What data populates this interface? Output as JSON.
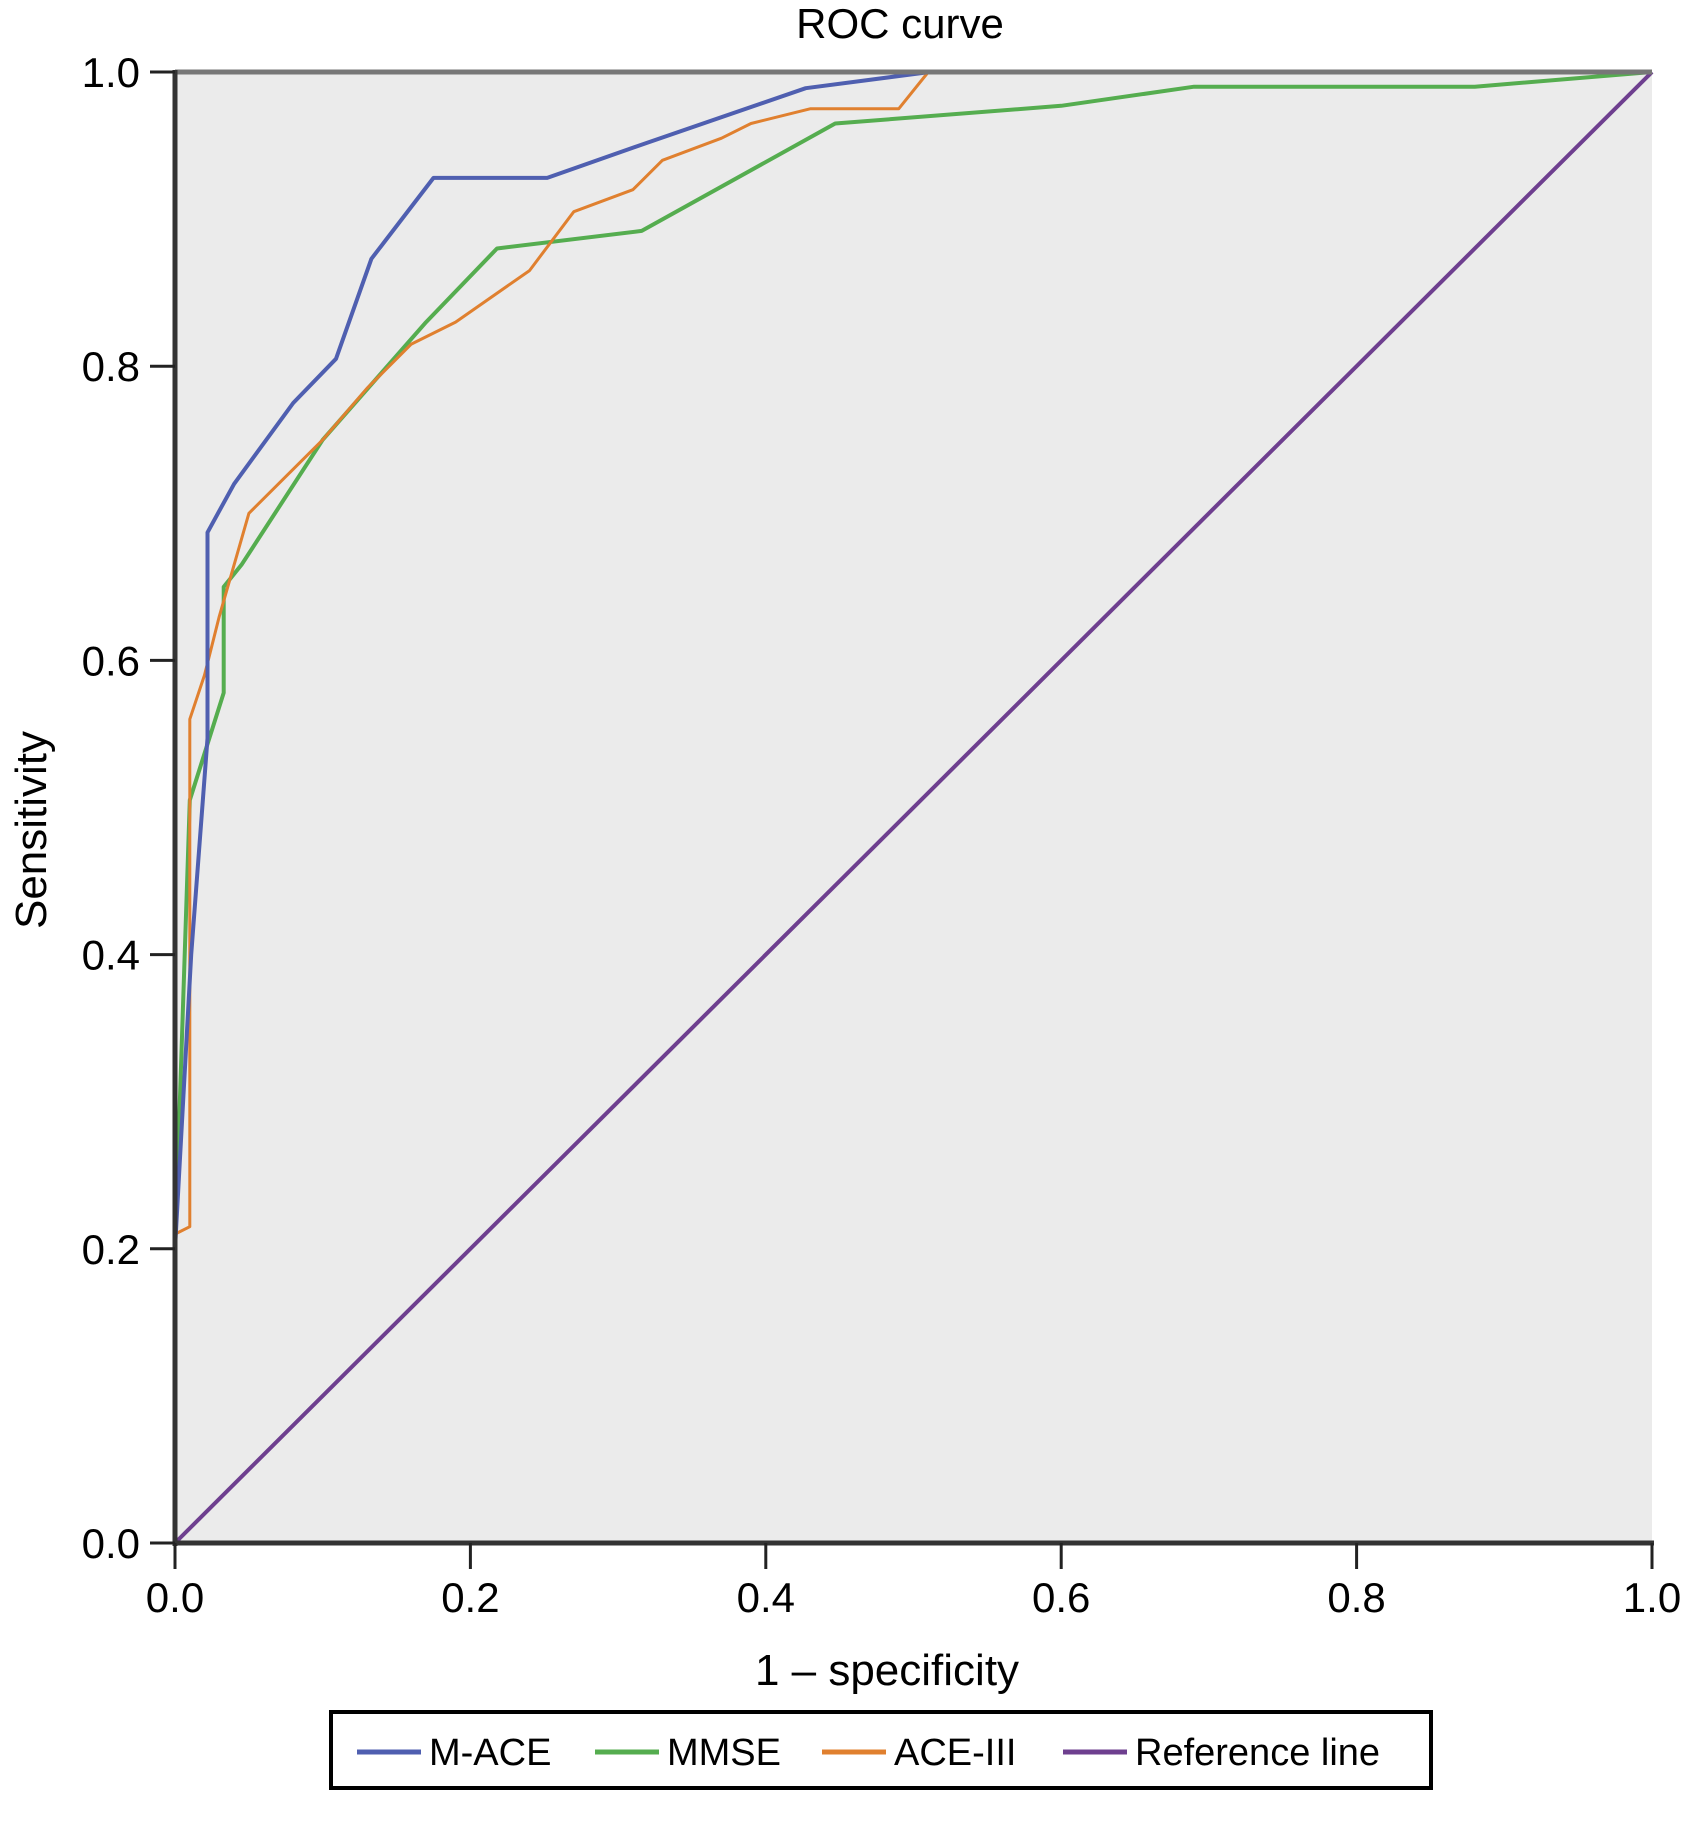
{
  "chart_data": {
    "type": "line",
    "title": "ROC curve",
    "xlabel": "1 – specificity",
    "ylabel": "Sensitivity",
    "xlim": [
      0,
      1
    ],
    "ylim": [
      0,
      1
    ],
    "xticks": [
      "0.0",
      "0.2",
      "0.4",
      "0.6",
      "0.8",
      "1.0"
    ],
    "yticks": [
      "0.0",
      "0.2",
      "0.4",
      "0.6",
      "0.8",
      "1.0"
    ],
    "grid": false,
    "background": "#ebebeb",
    "legend_position": "bottom",
    "series": [
      {
        "name": "M-ACE",
        "color": "#4f5fb0",
        "x": [
          0,
          0,
          0.011,
          0.022,
          0.022,
          0.04,
          0.08,
          0.109,
          0.133,
          0.175,
          0.252,
          0.32,
          0.427,
          0.511,
          1.0
        ],
        "y": [
          0,
          0.2,
          0.4,
          0.547,
          0.687,
          0.72,
          0.775,
          0.805,
          0.873,
          0.928,
          0.928,
          0.952,
          0.989,
          1.0,
          1.0
        ]
      },
      {
        "name": "MMSE",
        "color": "#55ad4f",
        "x": [
          0,
          0,
          0.01,
          0.033,
          0.033,
          0.045,
          0.1,
          0.17,
          0.218,
          0.316,
          0.447,
          0.6,
          0.69,
          0.88,
          1.0
        ],
        "y": [
          0,
          0.2,
          0.505,
          0.578,
          0.65,
          0.665,
          0.75,
          0.83,
          0.88,
          0.892,
          0.965,
          0.977,
          0.99,
          0.99,
          1.0
        ]
      },
      {
        "name": "ACE-III",
        "color": "#e0802f",
        "x": [
          0,
          0,
          0.01,
          0.01,
          0.02,
          0.03,
          0.05,
          0.07,
          0.1,
          0.13,
          0.16,
          0.19,
          0.24,
          0.27,
          0.31,
          0.33,
          0.37,
          0.39,
          0.43,
          0.49,
          0.51,
          1.0
        ],
        "y": [
          0,
          0.21,
          0.215,
          0.56,
          0.59,
          0.63,
          0.7,
          0.72,
          0.75,
          0.785,
          0.815,
          0.83,
          0.865,
          0.905,
          0.92,
          0.94,
          0.955,
          0.965,
          0.975,
          0.975,
          1.0,
          1.0
        ]
      },
      {
        "name": "Reference line",
        "color": "#6e3f8f",
        "x": [
          0,
          1
        ],
        "y": [
          0,
          1
        ]
      }
    ]
  }
}
